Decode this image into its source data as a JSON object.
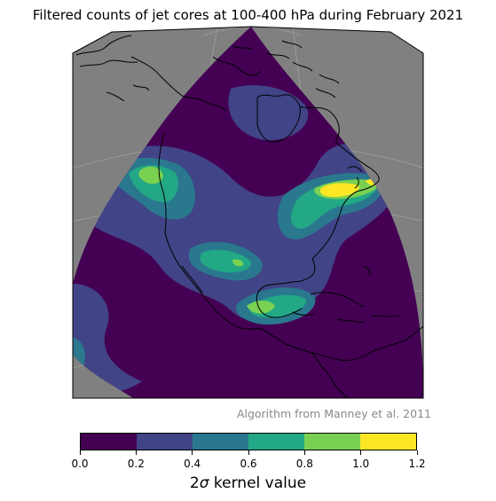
{
  "figure": {
    "title": "Filtered counts of jet cores at 100-400 hPa during February 2021",
    "credit": "Algorithm from Manney et al. 2011",
    "map_background_color": "#808080",
    "coastline_color": "#000000",
    "gridline_color": "#b0b0b0"
  },
  "colorbar": {
    "label_prefix": "2",
    "label_symbol": "σ",
    "label_suffix": " kernel value",
    "levels": [
      0.0,
      0.2,
      0.4,
      0.6,
      0.8,
      1.0,
      1.2
    ],
    "tick_labels": [
      "0.0",
      "0.2",
      "0.4",
      "0.6",
      "0.8",
      "1.0",
      "1.2"
    ],
    "colors": [
      "#440154",
      "#414487",
      "#2a788e",
      "#22a884",
      "#7ad151",
      "#fde725"
    ]
  },
  "chart_data": {
    "type": "heatmap",
    "title": "Filtered counts of jet cores at 100-400 hPa during February 2021",
    "region": "North America",
    "value_range": [
      0.0,
      1.2
    ],
    "colormap": "viridis",
    "maxima": [
      {
        "area": "US East Coast / New England",
        "value_bin": [
          1.0,
          1.2
        ]
      },
      {
        "area": "Western Canada / Pacific Northwest",
        "value_bin": [
          0.8,
          1.0
        ]
      },
      {
        "area": "Southern Great Plains",
        "value_bin": [
          0.8,
          1.0
        ]
      },
      {
        "area": "Gulf of Mexico",
        "value_bin": [
          0.8,
          1.0
        ]
      }
    ]
  }
}
